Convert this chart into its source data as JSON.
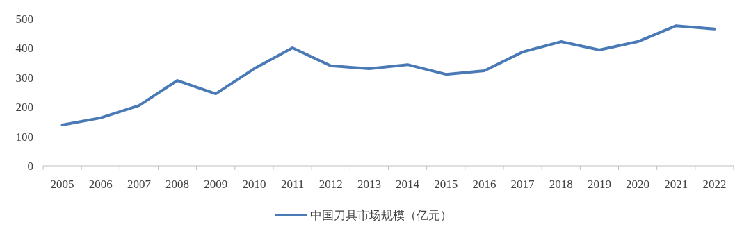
{
  "chart_data": {
    "type": "line",
    "categories": [
      "2005",
      "2006",
      "2007",
      "2008",
      "2009",
      "2010",
      "2011",
      "2012",
      "2013",
      "2014",
      "2015",
      "2016",
      "2017",
      "2018",
      "2019",
      "2020",
      "2021",
      "2022"
    ],
    "series": [
      {
        "name": "中国刀具市场规模（亿元）",
        "color": "#4a7ab5",
        "values": [
          139,
          163,
          205,
          290,
          245,
          330,
          401,
          340,
          330,
          344,
          311,
          323,
          387,
          422,
          394,
          422,
          476,
          465
        ]
      }
    ],
    "ylim": [
      0,
      500
    ],
    "yticks": [
      0,
      100,
      200,
      300,
      400,
      500
    ],
    "grid": false,
    "legend": "bottom",
    "marker": "none",
    "line_style": "solid"
  }
}
